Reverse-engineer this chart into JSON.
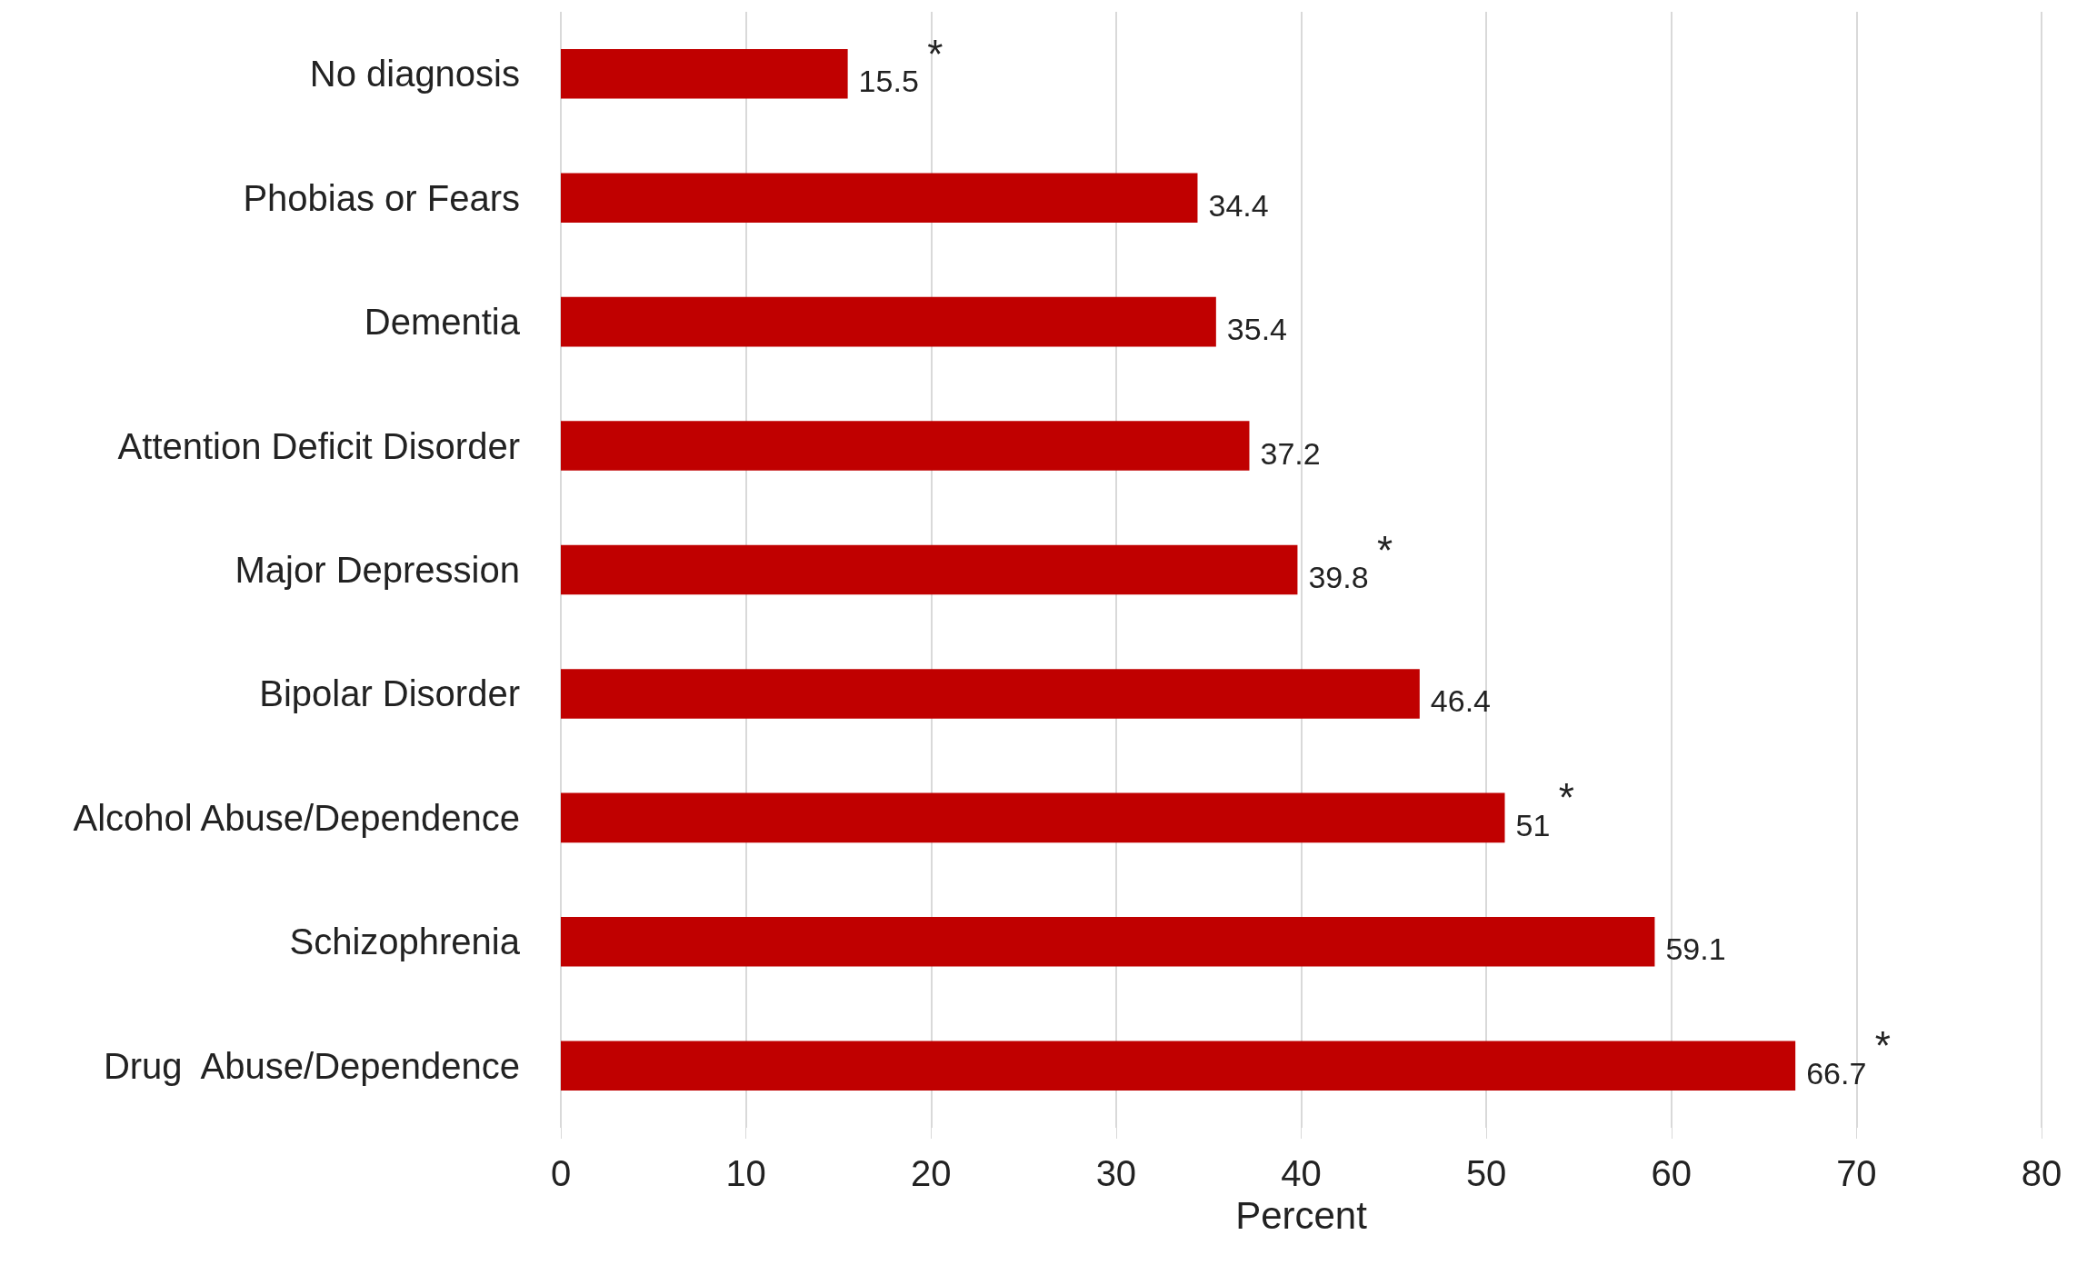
{
  "chart_data": {
    "type": "bar",
    "orientation": "horizontal",
    "xlabel": "Percent",
    "categories": [
      "No diagnosis",
      "Phobias or Fears",
      "Dementia",
      "Attention Deficit Disorder",
      "Major Depression",
      "Bipolar Disorder",
      "Alcohol Abuse/Dependence",
      "Schizophrenia",
      "Drug  Abuse/Dependence"
    ],
    "values": [
      15.5,
      34.4,
      35.4,
      37.2,
      39.8,
      46.4,
      51,
      59.1,
      66.7
    ],
    "color": "#c00000",
    "data_labels": true,
    "xlim": [
      0,
      80
    ],
    "xticks": [
      0,
      10,
      20,
      30,
      40,
      50,
      60,
      70,
      80
    ],
    "grid": "x",
    "annotations": [
      {
        "text": "*",
        "x": 15.5,
        "y": "No diagnosis"
      },
      {
        "text": "*",
        "x": 39.8,
        "y": "Major Depression"
      },
      {
        "text": "*",
        "x": 51,
        "y": "Alcohol Abuse/Dependence"
      },
      {
        "text": "*",
        "x": 66.7,
        "y": "Drug  Abuse/Dependence"
      }
    ]
  }
}
